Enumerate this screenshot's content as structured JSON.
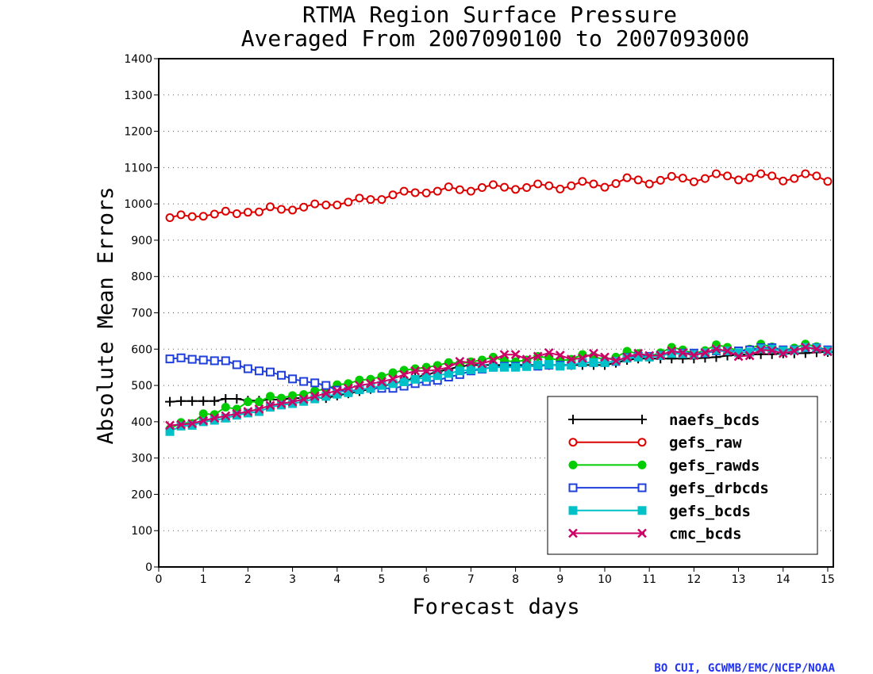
{
  "chart_data": {
    "type": "line",
    "title_line1": "RTMA Region Surface Pressure",
    "title_line2": "Averaged From 2007090100 to 2007093000",
    "xlabel": "Forecast days",
    "ylabel": "Absolute Mean Errors",
    "xlim": [
      0,
      15.125
    ],
    "ylim": [
      0,
      1400
    ],
    "x_ticks": [
      "0",
      "1",
      "2",
      "3",
      "4",
      "5",
      "6",
      "7",
      "8",
      "9",
      "10",
      "11",
      "12",
      "13",
      "14",
      "15"
    ],
    "y_ticks": [
      "0",
      "100",
      "200",
      "300",
      "400",
      "500",
      "600",
      "700",
      "800",
      "900",
      "1000",
      "1100",
      "1200",
      "1300",
      "1400"
    ],
    "grid": "dotted horizontal",
    "legend_position": "bottom-right",
    "x": [
      0.25,
      0.5,
      0.75,
      1,
      1.25,
      1.5,
      1.75,
      2,
      2.25,
      2.5,
      2.75,
      3,
      3.25,
      3.5,
      3.75,
      4,
      4.25,
      4.5,
      4.75,
      5,
      5.25,
      5.5,
      5.75,
      6,
      6.25,
      6.5,
      6.75,
      7,
      7.25,
      7.5,
      7.75,
      8,
      8.25,
      8.5,
      8.75,
      9,
      9.25,
      9.5,
      9.75,
      10,
      10.25,
      10.5,
      10.75,
      11,
      11.25,
      11.5,
      11.75,
      12,
      12.25,
      12.5,
      12.75,
      13,
      13.25,
      13.5,
      13.75,
      14,
      14.25,
      14.5,
      14.75,
      15
    ],
    "series": [
      {
        "name": "naefs_bcds",
        "color": "#000000",
        "marker": "plus",
        "values": [
          455,
          457,
          457,
          457,
          457,
          463,
          463,
          458,
          458,
          461,
          461,
          465,
          465,
          467,
          465,
          472,
          478,
          484,
          490,
          497,
          505,
          512,
          521,
          530,
          537,
          545,
          552,
          556,
          556,
          556,
          556,
          556,
          556,
          556,
          556,
          556,
          556,
          556,
          556,
          556,
          562,
          570,
          574,
          574,
          574,
          574,
          574,
          574,
          576,
          578,
          582,
          585,
          585,
          586,
          586,
          588,
          588,
          589,
          591,
          592
        ]
      },
      {
        "name": "gefs_raw",
        "color": "#dd0000",
        "marker": "open-circle",
        "values": [
          962,
          970,
          965,
          966,
          972,
          980,
          973,
          977,
          978,
          992,
          985,
          983,
          991,
          1000,
          997,
          997,
          1005,
          1016,
          1012,
          1012,
          1025,
          1035,
          1031,
          1030,
          1035,
          1047,
          1039,
          1035,
          1045,
          1053,
          1046,
          1040,
          1045,
          1055,
          1050,
          1041,
          1050,
          1062,
          1055,
          1046,
          1056,
          1072,
          1066,
          1055,
          1065,
          1076,
          1071,
          1061,
          1070,
          1083,
          1077,
          1066,
          1072,
          1083,
          1077,
          1063,
          1070,
          1083,
          1077,
          1062
        ]
      },
      {
        "name": "gefs_rawds",
        "color": "#00cc00",
        "marker": "filled-circle",
        "values": [
          380,
          398,
          395,
          422,
          420,
          440,
          435,
          455,
          455,
          470,
          465,
          472,
          475,
          485,
          490,
          502,
          505,
          515,
          517,
          525,
          535,
          542,
          546,
          550,
          555,
          563,
          560,
          565,
          570,
          578,
          568,
          565,
          570,
          580,
          576,
          568,
          572,
          585,
          580,
          570,
          578,
          594,
          588,
          580,
          590,
          605,
          598,
          588,
          596,
          612,
          605,
          595,
          600,
          614,
          606,
          597,
          603,
          614,
          607,
          596
        ]
      },
      {
        "name": "gefs_drbcds",
        "color": "#1f3fdd",
        "marker": "open-square",
        "values": [
          573,
          576,
          572,
          570,
          568,
          568,
          557,
          546,
          540,
          537,
          528,
          518,
          511,
          507,
          500,
          487,
          483,
          489,
          492,
          492,
          492,
          498,
          505,
          511,
          514,
          523,
          530,
          540,
          545,
          550,
          553,
          553,
          553,
          553,
          556,
          556,
          556,
          563,
          563,
          563,
          566,
          577,
          580,
          580,
          583,
          589,
          589,
          589,
          589,
          595,
          595,
          595,
          598,
          604,
          604,
          598,
          598,
          604,
          604,
          598
        ]
      },
      {
        "name": "gefs_bcds",
        "color": "#00c0c8",
        "marker": "filled-square",
        "values": [
          373,
          388,
          390,
          400,
          404,
          410,
          418,
          424,
          428,
          440,
          446,
          450,
          456,
          463,
          470,
          476,
          480,
          488,
          492,
          500,
          505,
          510,
          517,
          522,
          527,
          533,
          540,
          543,
          547,
          550,
          550,
          550,
          552,
          556,
          558,
          553,
          556,
          563,
          563,
          563,
          567,
          575,
          578,
          578,
          582,
          588,
          587,
          585,
          590,
          597,
          595,
          590,
          592,
          601,
          600,
          595,
          597,
          605,
          603,
          595
        ]
      },
      {
        "name": "cmc_bcds",
        "color": "#cc0066",
        "marker": "x",
        "values": [
          390,
          392,
          395,
          403,
          410,
          416,
          422,
          428,
          435,
          445,
          450,
          455,
          462,
          470,
          478,
          485,
          492,
          500,
          505,
          510,
          518,
          530,
          540,
          540,
          543,
          550,
          566,
          563,
          560,
          570,
          585,
          585,
          572,
          580,
          590,
          583,
          572,
          575,
          588,
          578,
          568,
          578,
          588,
          582,
          583,
          595,
          590,
          583,
          590,
          600,
          595,
          580,
          582,
          598,
          596,
          588,
          595,
          605,
          600,
          593
        ]
      }
    ]
  },
  "credit": "BO CUI, GCWMB/EMC/NCEP/NOAA"
}
